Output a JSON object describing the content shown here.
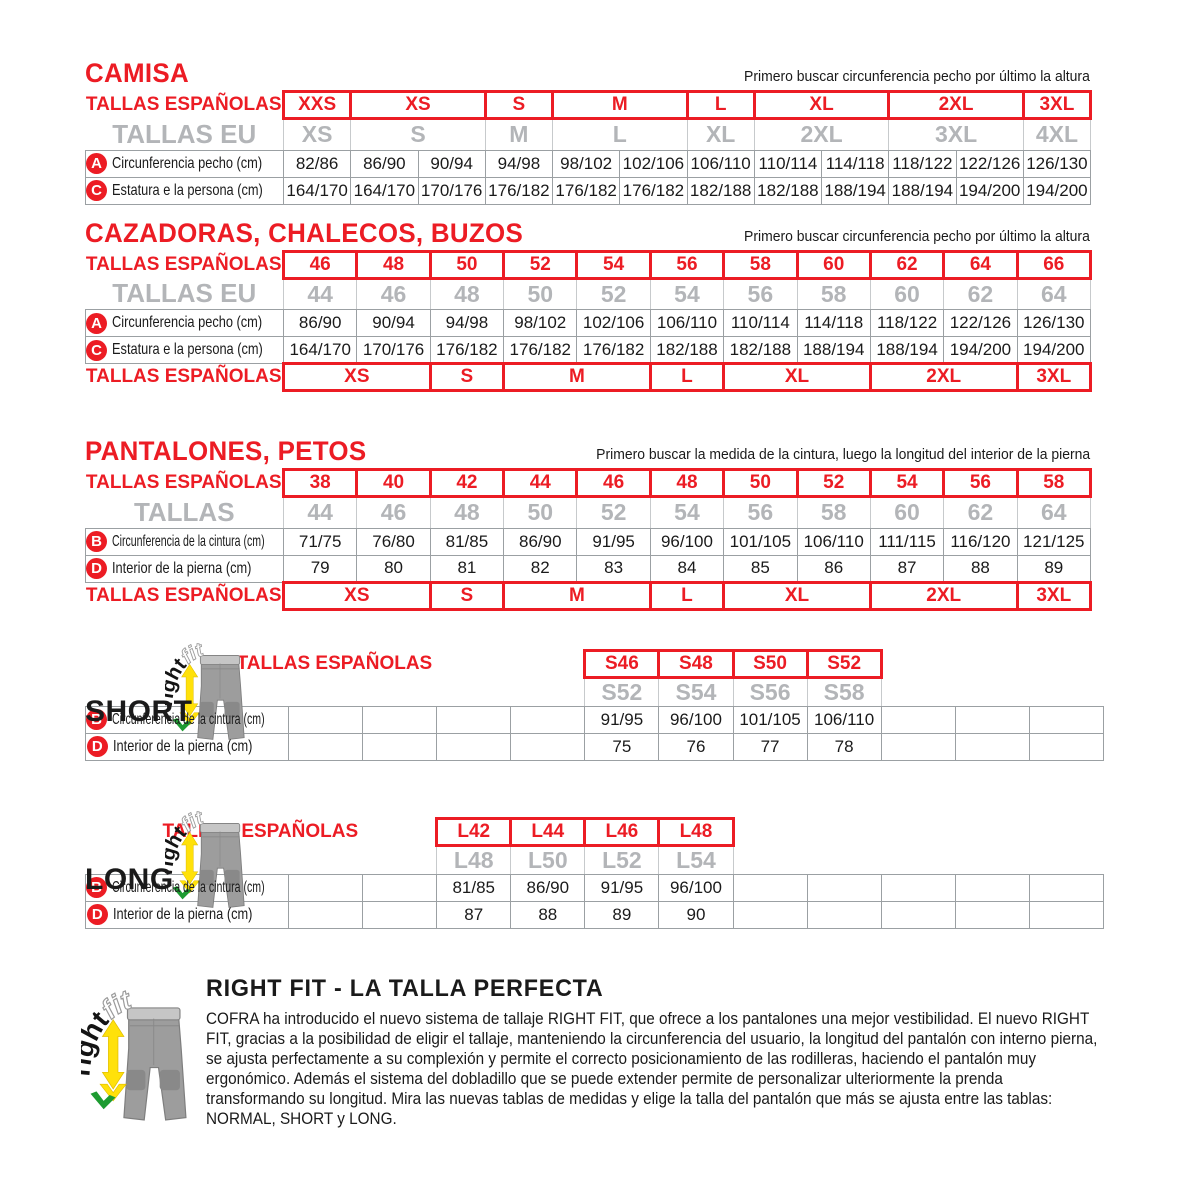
{
  "colors": {
    "red": "#ec1c24",
    "gray_sizes": "#b3b5b8",
    "border": "#9ba0a3"
  },
  "camisa": {
    "title": "CAMISA",
    "note": "Primero buscar circunferencia pecho por último la altura",
    "es_label": "TALLAS ESPAÑOLAS",
    "eu_label": "TALLAS EU",
    "es_sizes": [
      {
        "label": "XXS",
        "span": 1
      },
      {
        "label": "XS",
        "span": 2
      },
      {
        "label": "S",
        "span": 1
      },
      {
        "label": "M",
        "span": 2
      },
      {
        "label": "L",
        "span": 1
      },
      {
        "label": "XL",
        "span": 2
      },
      {
        "label": "2XL",
        "span": 2
      },
      {
        "label": "3XL",
        "span": 1
      }
    ],
    "eu_sizes": [
      {
        "label": "XS",
        "span": 1
      },
      {
        "label": "S",
        "span": 2
      },
      {
        "label": "M",
        "span": 1
      },
      {
        "label": "L",
        "span": 2
      },
      {
        "label": "XL",
        "span": 1
      },
      {
        "label": "2XL",
        "span": 2
      },
      {
        "label": "3XL",
        "span": 2
      },
      {
        "label": "4XL",
        "span": 1
      }
    ],
    "rows": [
      {
        "badge": "A",
        "label": "Circunferencia pecho (cm)",
        "values": [
          "82/86",
          "86/90",
          "90/94",
          "94/98",
          "98/102",
          "102/106",
          "106/110",
          "110/114",
          "114/118",
          "118/122",
          "122/126",
          "126/130"
        ]
      },
      {
        "badge": "C",
        "label": "Estatura e la persona (cm)",
        "values": [
          "164/170",
          "164/170",
          "170/176",
          "176/182",
          "176/182",
          "176/182",
          "182/188",
          "182/188",
          "188/194",
          "188/194",
          "194/200",
          "194/200"
        ]
      }
    ]
  },
  "cazadoras": {
    "title": "CAZADORAS, CHALECOS, BUZOS",
    "note": "Primero buscar circunferencia pecho por último la altura",
    "es_label": "TALLAS ESPAÑOLAS",
    "eu_label": "TALLAS EU",
    "es_sizes": [
      {
        "label": "46",
        "span": 1
      },
      {
        "label": "48",
        "span": 1
      },
      {
        "label": "50",
        "span": 1
      },
      {
        "label": "52",
        "span": 1
      },
      {
        "label": "54",
        "span": 1
      },
      {
        "label": "56",
        "span": 1
      },
      {
        "label": "58",
        "span": 1
      },
      {
        "label": "60",
        "span": 1
      },
      {
        "label": "62",
        "span": 1
      },
      {
        "label": "64",
        "span": 1
      },
      {
        "label": "66",
        "span": 1
      }
    ],
    "eu_sizes": [
      {
        "label": "44",
        "span": 1
      },
      {
        "label": "46",
        "span": 1
      },
      {
        "label": "48",
        "span": 1
      },
      {
        "label": "50",
        "span": 1
      },
      {
        "label": "52",
        "span": 1
      },
      {
        "label": "54",
        "span": 1
      },
      {
        "label": "56",
        "span": 1
      },
      {
        "label": "58",
        "span": 1
      },
      {
        "label": "60",
        "span": 1
      },
      {
        "label": "62",
        "span": 1
      },
      {
        "label": "64",
        "span": 1
      }
    ],
    "rows": [
      {
        "badge": "A",
        "label": "Circunferencia pecho (cm)",
        "values": [
          "86/90",
          "90/94",
          "94/98",
          "98/102",
          "102/106",
          "106/110",
          "110/114",
          "114/118",
          "118/122",
          "122/126",
          "126/130"
        ]
      },
      {
        "badge": "C",
        "label": "Estatura e la persona (cm)",
        "values": [
          "164/170",
          "170/176",
          "176/182",
          "176/182",
          "176/182",
          "182/188",
          "182/188",
          "188/194",
          "188/194",
          "194/200",
          "194/200"
        ]
      }
    ],
    "bottom_label": "TALLAS ESPAÑOLAS",
    "bottom_sizes": [
      {
        "label": "XS",
        "span": 2
      },
      {
        "label": "S",
        "span": 1
      },
      {
        "label": "M",
        "span": 2
      },
      {
        "label": "L",
        "span": 1
      },
      {
        "label": "XL",
        "span": 2
      },
      {
        "label": "2XL",
        "span": 2
      },
      {
        "label": "3XL",
        "span": 1
      }
    ]
  },
  "pantalones": {
    "title": "PANTALONES, PETOS",
    "note": "Primero buscar la medida de la cintura, luego la longitud del interior de la pierna",
    "es_label": "TALLAS ESPAÑOLAS",
    "eu_label": "TALLAS",
    "es_sizes": [
      {
        "label": "38",
        "span": 1
      },
      {
        "label": "40",
        "span": 1
      },
      {
        "label": "42",
        "span": 1
      },
      {
        "label": "44",
        "span": 1
      },
      {
        "label": "46",
        "span": 1
      },
      {
        "label": "48",
        "span": 1
      },
      {
        "label": "50",
        "span": 1
      },
      {
        "label": "52",
        "span": 1
      },
      {
        "label": "54",
        "span": 1
      },
      {
        "label": "56",
        "span": 1
      },
      {
        "label": "58",
        "span": 1
      }
    ],
    "eu_sizes": [
      {
        "label": "44",
        "span": 1
      },
      {
        "label": "46",
        "span": 1
      },
      {
        "label": "48",
        "span": 1
      },
      {
        "label": "50",
        "span": 1
      },
      {
        "label": "52",
        "span": 1
      },
      {
        "label": "54",
        "span": 1
      },
      {
        "label": "56",
        "span": 1
      },
      {
        "label": "58",
        "span": 1
      },
      {
        "label": "60",
        "span": 1
      },
      {
        "label": "62",
        "span": 1
      },
      {
        "label": "64",
        "span": 1
      }
    ],
    "rows": [
      {
        "badge": "B",
        "label": "Circunferencia de la cintura (cm)",
        "values": [
          "71/75",
          "76/80",
          "81/85",
          "86/90",
          "91/95",
          "96/100",
          "101/105",
          "106/110",
          "111/115",
          "116/120",
          "121/125"
        ]
      },
      {
        "badge": "D",
        "label": "Interior de la pierna (cm)",
        "values": [
          "79",
          "80",
          "81",
          "82",
          "83",
          "84",
          "85",
          "86",
          "87",
          "88",
          "89"
        ]
      }
    ],
    "bottom_label": "TALLAS ESPAÑOLAS",
    "bottom_sizes": [
      {
        "label": "XS",
        "span": 2
      },
      {
        "label": "S",
        "span": 1
      },
      {
        "label": "M",
        "span": 2
      },
      {
        "label": "L",
        "span": 1
      },
      {
        "label": "XL",
        "span": 2
      },
      {
        "label": "2XL",
        "span": 2
      },
      {
        "label": "3XL",
        "span": 1
      }
    ]
  },
  "short": {
    "name": "SHORT",
    "es_label": "TALLAS ESPAÑOLAS",
    "lead": 4,
    "trail": 3,
    "es_sizes": [
      "S46",
      "S48",
      "S50",
      "S52"
    ],
    "eu_sizes": [
      "S52",
      "S54",
      "S56",
      "S58"
    ],
    "rows": [
      {
        "badge": "B",
        "label": "Circunferencia de la cintura (cm)",
        "values": [
          "",
          "",
          "",
          "",
          "91/95",
          "96/100",
          "101/105",
          "106/110",
          "",
          "",
          ""
        ]
      },
      {
        "badge": "D",
        "label": "Interior de la pierna (cm)",
        "values": [
          "",
          "",
          "",
          "",
          "75",
          "76",
          "77",
          "78",
          "",
          "",
          ""
        ]
      }
    ]
  },
  "long": {
    "name": "LONG",
    "es_label": "TALLAS ESPAÑOLAS",
    "lead": 2,
    "trail": 5,
    "es_sizes": [
      "L42",
      "L44",
      "L46",
      "L48"
    ],
    "eu_sizes": [
      "L48",
      "L50",
      "L52",
      "L54"
    ],
    "rows": [
      {
        "badge": "B",
        "label": "Circunferencia de la cintura (cm)",
        "values": [
          "",
          "",
          "81/85",
          "86/90",
          "91/95",
          "96/100",
          "",
          "",
          "",
          "",
          ""
        ]
      },
      {
        "badge": "D",
        "label": "Interior de la pierna (cm)",
        "values": [
          "",
          "",
          "87",
          "88",
          "89",
          "90",
          "",
          "",
          "",
          "",
          ""
        ]
      }
    ]
  },
  "rightfit": {
    "word1": "right",
    "word2": "fit",
    "title": "RIGHT FIT - LA TALLA PERFECTA",
    "body": "COFRA ha introducido el nuevo sistema de tallaje RIGHT FIT, que ofrece a los pantalones una mejor vestibilidad. El nuevo RIGHT FIT, gracias a la posibilidad de eligir el tallaje, manteniendo la circunferencia del usuario, la longitud del pantalón con interno pierna, se ajusta perfectamente a su complexión y permite el correcto posicionamiento de las rodilleras, haciendo el pantalón muy ergonómico. Además el sistema del dobladillo que se puede extender permite de personalizar ulteriormente la prenda transformando su longitud. Mira las nuevas tablas de medidas y elige la talla del pantalón que más se ajusta entre las tablas: NORMAL, SHORT y LONG."
  }
}
